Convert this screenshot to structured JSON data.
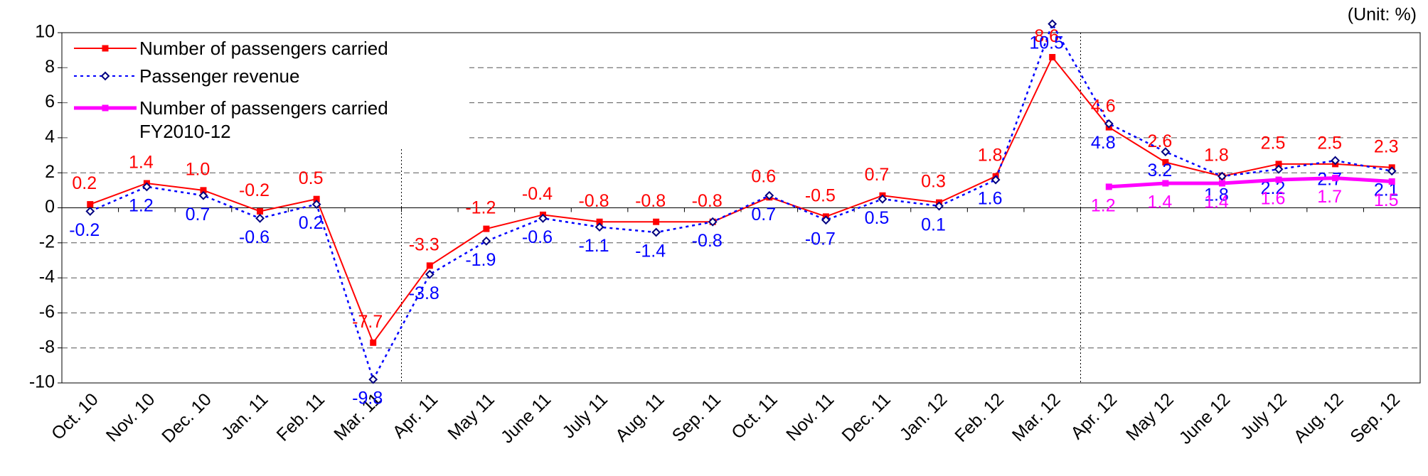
{
  "chart_data": {
    "type": "line",
    "unit_label": "(Unit: %)",
    "categories": [
      "Oct. 10",
      "Nov. 10",
      "Dec. 10",
      "Jan. 11",
      "Feb. 11",
      "Mar. 11",
      "Apr. 11",
      "May 11",
      "June 11",
      "July 11",
      "Aug. 11",
      "Sep. 11",
      "Oct. 11",
      "Nov. 11",
      "Dec. 11",
      "Jan. 12",
      "Feb. 12",
      "Mar. 12",
      "Apr. 12",
      "May 12",
      "June 12",
      "July 12",
      "Aug. 12",
      "Sep. 12"
    ],
    "series": [
      {
        "name": "Number of passengers carried",
        "color": "#ff0000",
        "dash": "solid",
        "marker": "square",
        "values": [
          0.2,
          1.4,
          1.0,
          -0.2,
          0.5,
          -7.7,
          -3.3,
          -1.2,
          -0.4,
          -0.8,
          -0.8,
          -0.8,
          0.6,
          -0.5,
          0.7,
          0.3,
          1.8,
          8.6,
          4.6,
          2.6,
          1.8,
          2.5,
          2.5,
          2.3
        ],
        "value_labels": [
          "0.2",
          "1.4",
          "1.0",
          "-0.2",
          "0.5",
          "-7.7",
          "-3.3",
          "-1.2",
          "-0.4",
          "-0.8",
          "-0.8",
          "-0.8",
          "0.6",
          "-0.5",
          "0.7",
          "0.3",
          "1.8",
          "8.6",
          "4.6",
          "2.6",
          "1.8",
          "2.5",
          "2.5",
          "2.3"
        ]
      },
      {
        "name": "Passenger revenue",
        "color": "#0000ff",
        "dash": "dotted",
        "marker": "diamond",
        "values": [
          -0.2,
          1.2,
          0.7,
          -0.6,
          0.2,
          -9.8,
          -3.8,
          -1.9,
          -0.6,
          -1.1,
          -1.4,
          -0.8,
          0.7,
          -0.7,
          0.5,
          0.1,
          1.6,
          10.5,
          4.8,
          3.2,
          1.8,
          2.2,
          2.7,
          2.1
        ],
        "value_labels": [
          "-0.2",
          "1.2",
          "0.7",
          "-0.6",
          "0.2",
          "-9.8",
          "-3.8",
          "-1.9",
          "-0.6",
          "-1.1",
          "-1.4",
          "-0.8",
          "0.7",
          "-0.7",
          "0.5",
          "0.1",
          "1.6",
          "10.5",
          "4.8",
          "3.2",
          "1.8",
          "2.2",
          "2.7",
          "2.1"
        ]
      },
      {
        "name": "Number of passengers carried FY2010-12",
        "color": "#ff00ff",
        "dash": "solid",
        "marker": "square",
        "values": [
          null,
          null,
          null,
          null,
          null,
          null,
          null,
          null,
          null,
          null,
          null,
          null,
          null,
          null,
          null,
          null,
          null,
          null,
          1.2,
          1.4,
          1.4,
          1.6,
          1.7,
          1.5
        ],
        "value_labels": [
          null,
          null,
          null,
          null,
          null,
          null,
          null,
          null,
          null,
          null,
          null,
          null,
          null,
          null,
          null,
          null,
          null,
          null,
          "1.2",
          "1.4",
          "1.4",
          "1.6",
          "1.7",
          "1.5"
        ]
      }
    ],
    "ylim": [
      -10,
      10
    ],
    "yticks": [
      -10,
      -8,
      -6,
      -4,
      -2,
      0,
      2,
      4,
      6,
      8,
      10
    ],
    "grid": true
  }
}
